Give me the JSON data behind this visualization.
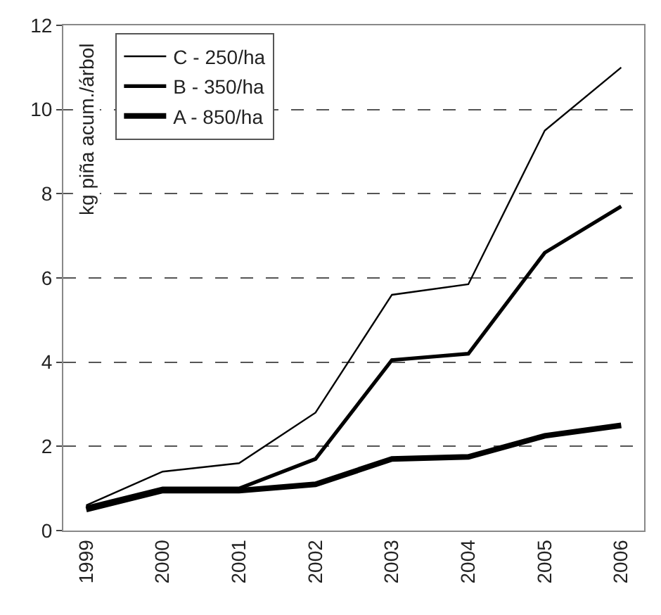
{
  "chart_data": {
    "type": "line",
    "ylabel": "kg piña acum./árbol",
    "categories": [
      "1999",
      "2000",
      "2001",
      "2002",
      "2003",
      "2004",
      "2005",
      "2006"
    ],
    "series": [
      {
        "name": "C - 250/ha",
        "color": "#000000",
        "values": [
          0.6,
          1.4,
          1.6,
          2.8,
          5.6,
          5.85,
          9.5,
          11.0
        ]
      },
      {
        "name": "B - 350/ha",
        "color": "#000000",
        "values": [
          0.55,
          1.0,
          1.0,
          1.7,
          4.05,
          4.2,
          6.6,
          7.7
        ]
      },
      {
        "name": "A - 850/ha",
        "color": "#000000",
        "values": [
          0.5,
          0.95,
          0.95,
          1.1,
          1.7,
          1.75,
          2.25,
          2.5
        ]
      }
    ],
    "ylim": [
      0,
      12
    ],
    "yticks": [
      0,
      2,
      4,
      6,
      8,
      10,
      12
    ],
    "grid": "y",
    "legend": "top left",
    "marker": "none",
    "line_style": "solid"
  }
}
